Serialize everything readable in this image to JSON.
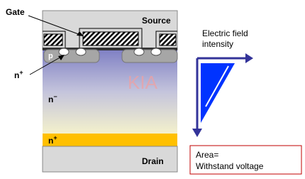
{
  "labels": {
    "gate": "Gate",
    "source": "Source",
    "p": "p",
    "n_plus_top": {
      "base": "n",
      "sup": "+"
    },
    "n_minus": {
      "base": "n",
      "sup": "−"
    },
    "n_plus_bottom": {
      "base": "n",
      "sup": "+"
    },
    "drain": "Drain",
    "watermark": "KIA"
  },
  "field": {
    "title_line1": "Electric field",
    "title_line2": "intensity"
  },
  "note": {
    "line1": "Area=",
    "line2": "Withstand voltage"
  }
}
